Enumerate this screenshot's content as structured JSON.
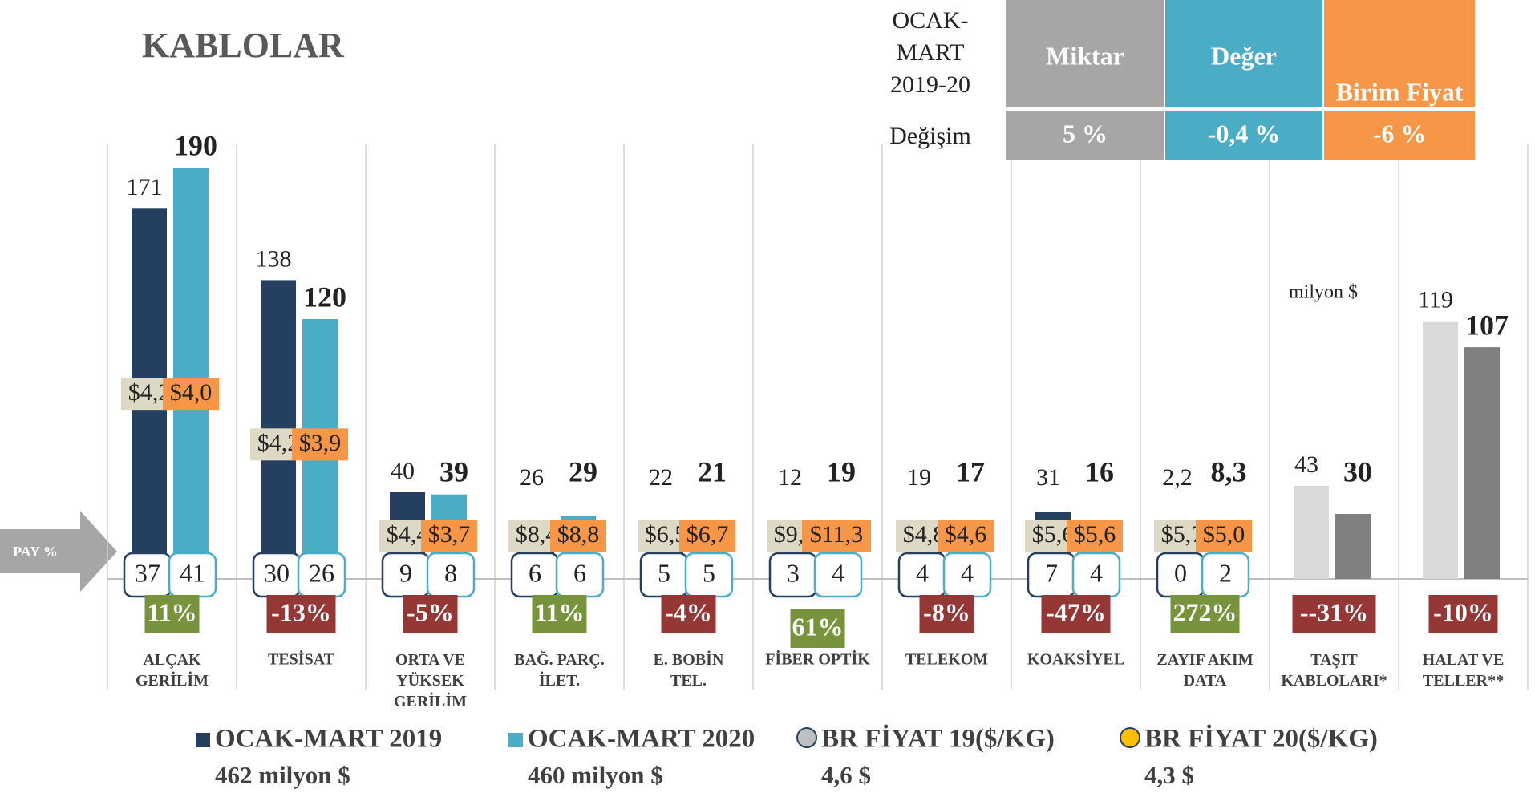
{
  "chart_data": {
    "type": "bar",
    "title": "KABLOLAR",
    "unit_label": "milyon $",
    "share_label": "PAY %",
    "categories": [
      "ALÇAK\nGERİLİM",
      "TESİSAT",
      "ORTA VE\nYÜKSEK\nGERİLİM",
      "BAĞ. PARÇ.\nİLET.",
      "E. BOBİN\nTEL.",
      "FİBER OPTİK",
      "TELEKOM",
      "KOAKSİYEL",
      "ZAYIF AKIM\nDATA",
      "TAŞIT\nKABLOLARI*",
      "HALAT VE\nTELLER**"
    ],
    "ylim": [
      0,
      190
    ],
    "series": [
      {
        "name": "OCAK-MART 2019",
        "note": "462 milyon $",
        "color": "#243f60",
        "colors": [
          "#243f60",
          "#243f60",
          "#243f60",
          "#243f60",
          "#243f60",
          "#243f60",
          "#243f60",
          "#243f60",
          "#243f60",
          "#d9d9d9",
          "#d9d9d9"
        ],
        "values": [
          171,
          138,
          40,
          26,
          22,
          12,
          19,
          31,
          2.2,
          43,
          119
        ],
        "value_labels": [
          "171",
          "138",
          "40",
          "26",
          "22",
          "12",
          "19",
          "31",
          "2,2",
          "43",
          "119"
        ]
      },
      {
        "name": "OCAK-MART 2020",
        "note": "460 milyon $",
        "color": "#4bacc6",
        "colors": [
          "#4bacc6",
          "#4bacc6",
          "#4bacc6",
          "#4bacc6",
          "#4bacc6",
          "#4bacc6",
          "#4bacc6",
          "#4bacc6",
          "#4bacc6",
          "#808080",
          "#808080"
        ],
        "values": [
          190,
          120,
          39,
          29,
          21,
          19,
          17,
          16,
          8.3,
          30,
          107
        ],
        "value_labels": [
          "190",
          "120",
          "39",
          "29",
          "21",
          "19",
          "17",
          "16",
          "8,3",
          "30",
          "107"
        ]
      }
    ],
    "price_series": [
      {
        "name": "BR FİYAT 19($/KG)",
        "note": "4,6 $",
        "color": "#ddd9c4",
        "marker_border": "#243f60",
        "values": [
          4.2,
          4.2,
          4.4,
          8.4,
          6.5,
          9.5,
          4.8,
          5.6,
          5.7,
          null,
          null
        ],
        "value_labels": [
          "$4,2",
          "$4,2",
          "$4,4",
          "$8,4",
          "$6,5",
          "$9,5",
          "$4,8",
          "$5,6",
          "$5,7",
          null,
          null
        ]
      },
      {
        "name": "BR FİYAT 20($/KG)",
        "note": "4,3 $",
        "color": "#f79646",
        "marker": "#ffc000",
        "marker_border": "#243f60",
        "values": [
          4.0,
          3.9,
          3.7,
          8.8,
          6.7,
          11.3,
          4.6,
          5.6,
          5.0,
          null,
          null
        ],
        "value_labels": [
          "$4,0",
          "$3,9",
          "$3,7",
          "$8,8",
          "$6,7",
          "$11,3",
          "$4,6",
          "$5,6",
          "$5,0",
          null,
          null
        ]
      }
    ],
    "shares": [
      {
        "color": "#243f60",
        "values": [
          37,
          30,
          9,
          6,
          5,
          3,
          4,
          7,
          0,
          null,
          null
        ]
      },
      {
        "color": "#4bacc6",
        "values": [
          41,
          26,
          8,
          6,
          5,
          4,
          4,
          4,
          2,
          null,
          null
        ]
      }
    ],
    "changes": {
      "positive_color": "#77933c",
      "negative_color": "#953735",
      "values": [
        11,
        -13,
        -5,
        11,
        -4,
        61,
        -8,
        -47,
        272,
        -31,
        -10
      ],
      "value_labels": [
        "11%",
        "-13%",
        "-5%",
        "11%",
        "-4%",
        "61%",
        "-8%",
        "-47%",
        "272%",
        "--31%",
        "-10%"
      ]
    },
    "summary": {
      "header": "OCAK-\nMART\n2019-20",
      "row_label": "Değişim",
      "columns": [
        {
          "name": "Miktar",
          "value": "5 %",
          "color": "#a6a6a6"
        },
        {
          "name": "Değer",
          "value": "-0,4 %",
          "color": "#4bacc6"
        },
        {
          "name": "Birim Fiyat",
          "value": "-6 %",
          "color": "#f79646"
        }
      ]
    }
  }
}
